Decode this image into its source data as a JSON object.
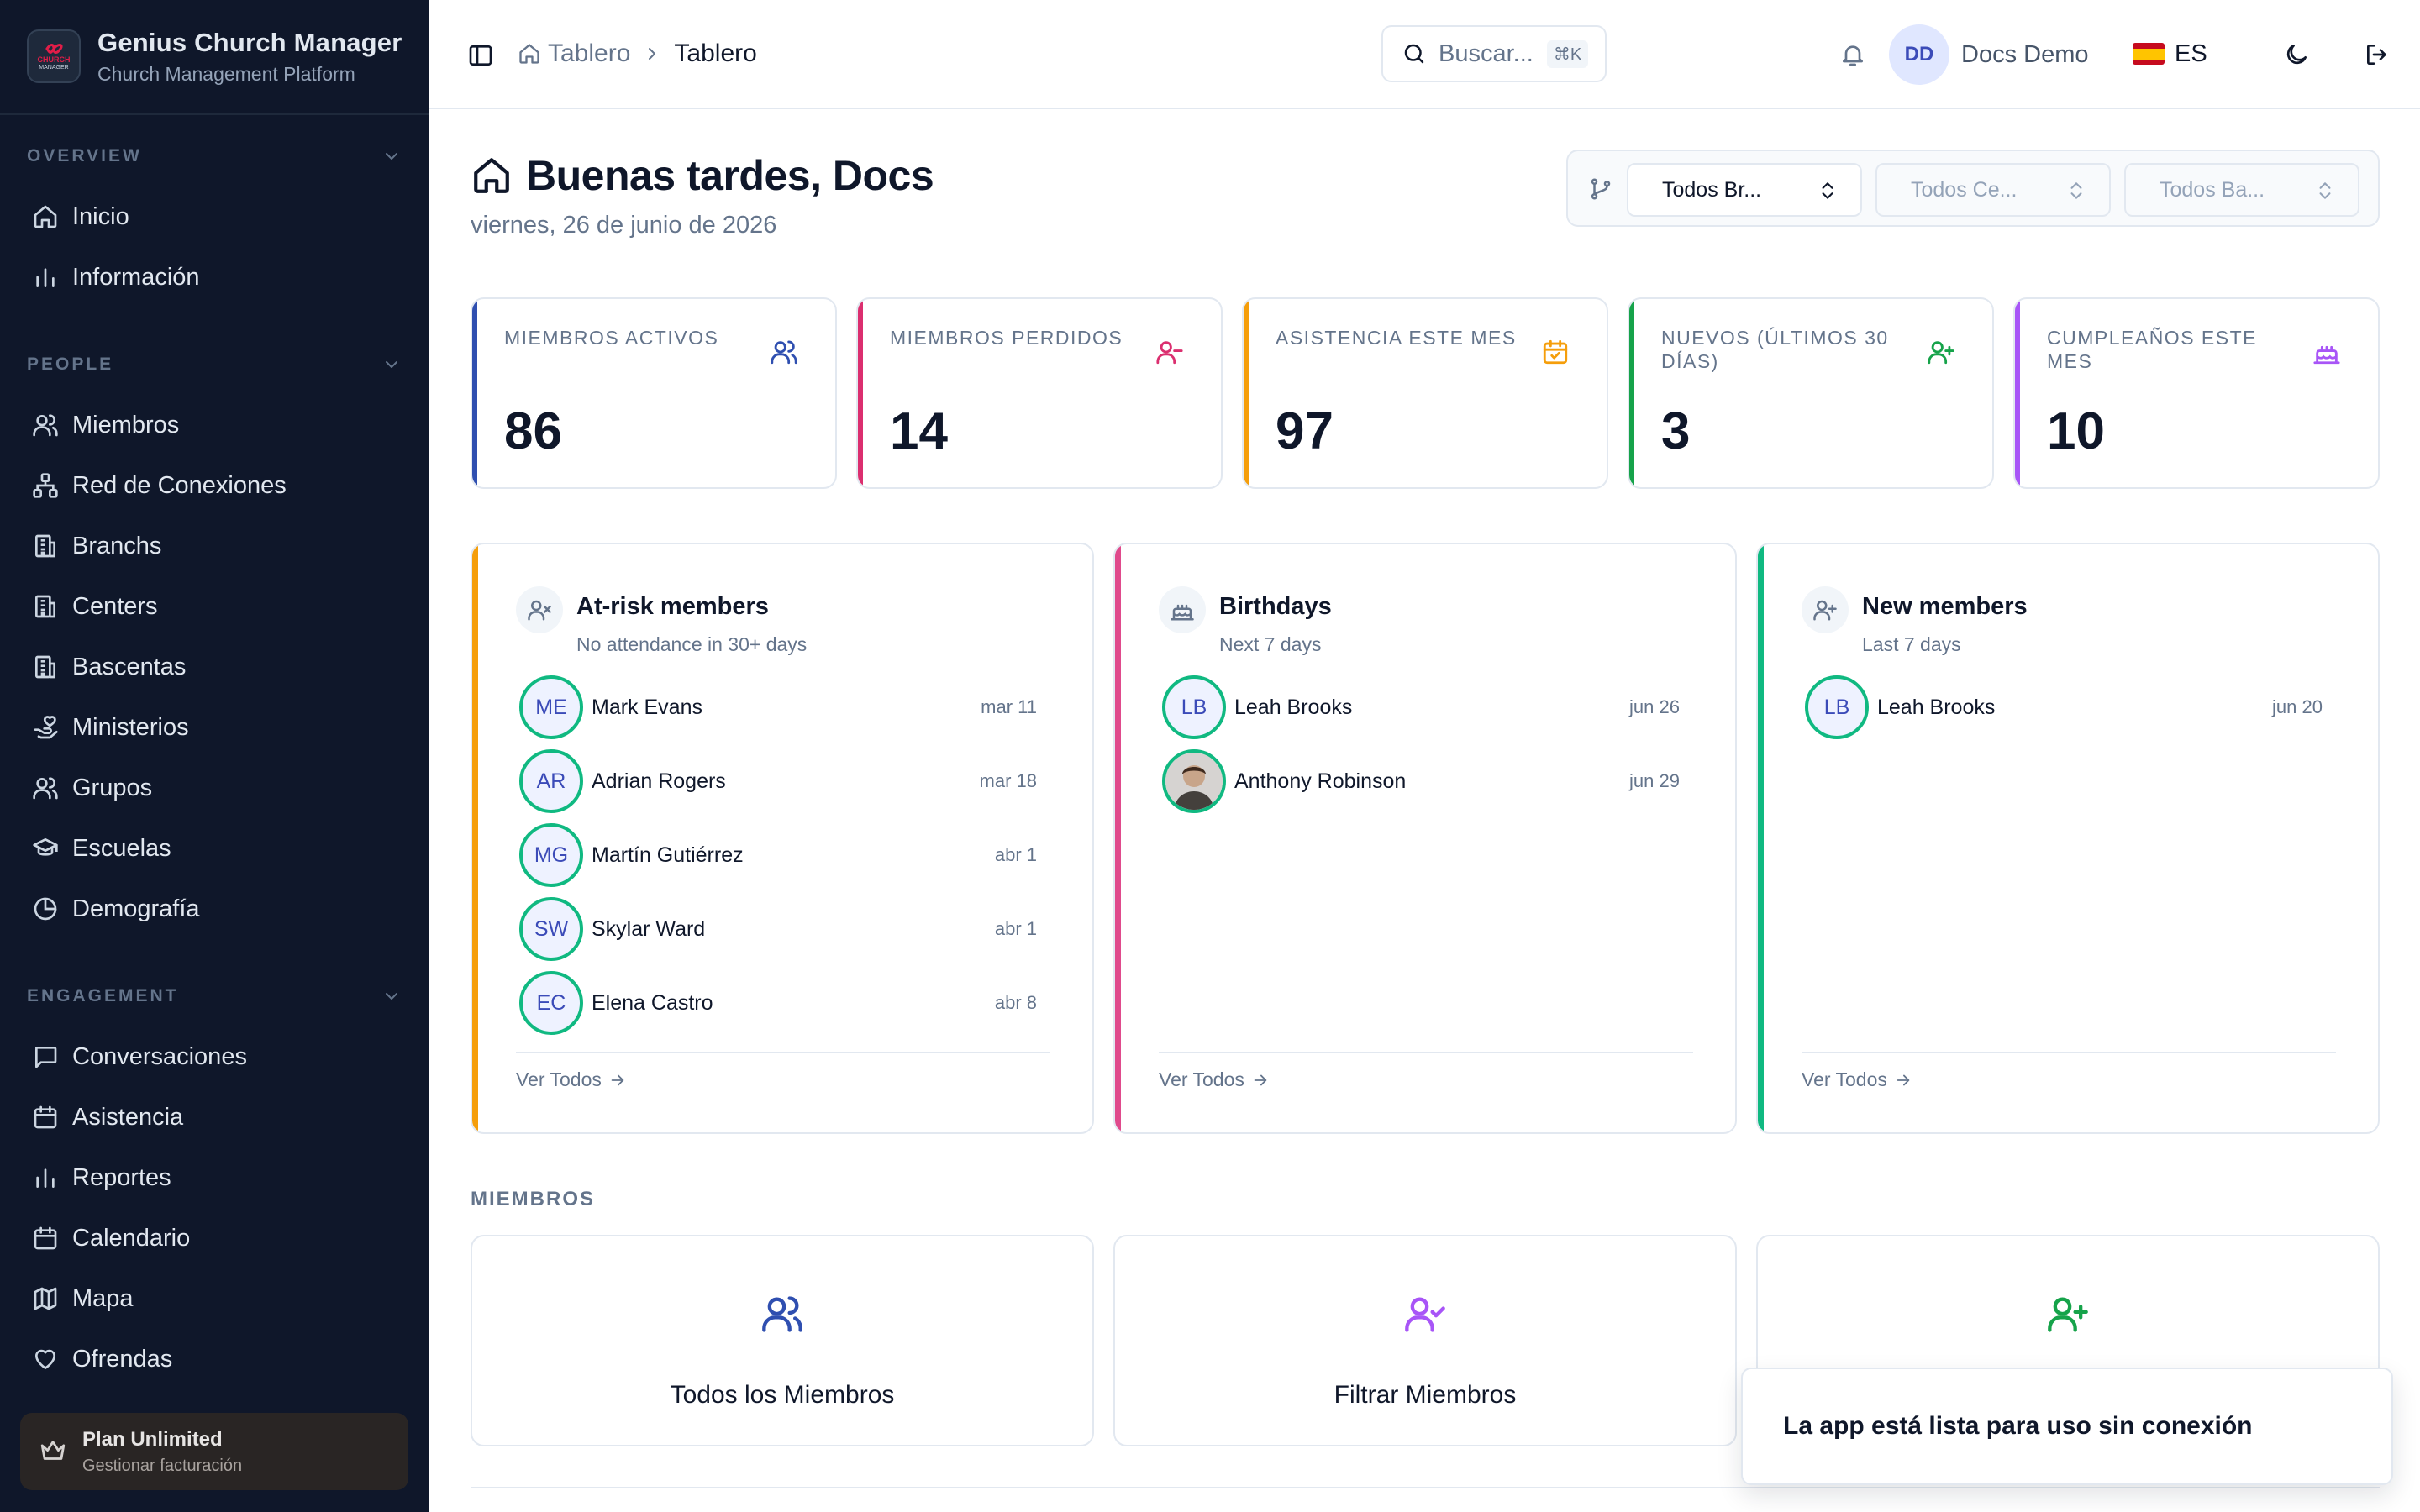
{
  "brand": {
    "title": "Genius Church Manager",
    "subtitle": "Church Management Platform",
    "logo_text_top": "CHURCH",
    "logo_text_bottom": "MANAGER"
  },
  "sidebar": {
    "sections": [
      {
        "label": "OVERVIEW",
        "items": [
          {
            "label": "Inicio",
            "icon": "home-icon"
          },
          {
            "label": "Información",
            "icon": "bar-chart-icon"
          }
        ]
      },
      {
        "label": "PEOPLE",
        "items": [
          {
            "label": "Miembros",
            "icon": "users-icon"
          },
          {
            "label": "Red de Conexiones",
            "icon": "network-icon"
          },
          {
            "label": "Branchs",
            "icon": "building-icon"
          },
          {
            "label": "Centers",
            "icon": "building-icon"
          },
          {
            "label": "Bascentas",
            "icon": "building-icon"
          },
          {
            "label": "Ministerios",
            "icon": "hand-heart-icon"
          },
          {
            "label": "Grupos",
            "icon": "users-icon"
          },
          {
            "label": "Escuelas",
            "icon": "graduation-cap-icon"
          },
          {
            "label": "Demografía",
            "icon": "pie-chart-icon"
          }
        ]
      },
      {
        "label": "ENGAGEMENT",
        "items": [
          {
            "label": "Conversaciones",
            "icon": "message-icon"
          },
          {
            "label": "Asistencia",
            "icon": "calendar-icon"
          },
          {
            "label": "Reportes",
            "icon": "bar-chart-icon"
          },
          {
            "label": "Calendario",
            "icon": "calendar-icon"
          },
          {
            "label": "Mapa",
            "icon": "map-icon"
          },
          {
            "label": "Ofrendas",
            "icon": "heart-icon"
          }
        ]
      }
    ],
    "plan": {
      "title": "Plan Unlimited",
      "subtitle": "Gestionar facturación"
    }
  },
  "header": {
    "breadcrumb": {
      "home": "Tablero",
      "current": "Tablero"
    },
    "search": {
      "placeholder": "Buscar...",
      "shortcut": "⌘K"
    },
    "user": {
      "initials": "DD",
      "name": "Docs Demo"
    },
    "language": {
      "code": "ES",
      "flag": "spain-flag-icon"
    }
  },
  "main": {
    "greeting": "Buenas tardes, Docs",
    "date": "viernes, 26 de junio de 2026",
    "filters": [
      "Todos Br...",
      "Todos Ce...",
      "Todos Ba..."
    ],
    "stats": [
      {
        "label": "Miembros activos",
        "value": "86",
        "color": "#2f4fb0",
        "icon": "users-icon"
      },
      {
        "label": "Miembros perdidos",
        "value": "14",
        "color": "#db2f6f",
        "icon": "user-minus-icon"
      },
      {
        "label": "Asistencia este mes",
        "value": "97",
        "color": "#f59e0b",
        "icon": "calendar-check-icon"
      },
      {
        "label": "Nuevos (últimos 30 días)",
        "value": "3",
        "color": "#16a34a",
        "icon": "user-plus-icon"
      },
      {
        "label": "Cumpleaños este mes",
        "value": "10",
        "color": "#a855f7",
        "icon": "cake-icon"
      }
    ],
    "lists": [
      {
        "title": "At-risk members",
        "subtitle": "No attendance in 30+ days",
        "color": "#f59e0b",
        "icon": "user-x-icon",
        "link": "Ver Todos",
        "rows": [
          {
            "initials": "ME",
            "name": "Mark Evans",
            "date": "mar 11"
          },
          {
            "initials": "AR",
            "name": "Adrian Rogers",
            "date": "mar 18"
          },
          {
            "initials": "MG",
            "name": "Martín Gutiérrez",
            "date": "abr 1"
          },
          {
            "initials": "SW",
            "name": "Skylar Ward",
            "date": "abr 1"
          },
          {
            "initials": "EC",
            "name": "Elena Castro",
            "date": "abr 8"
          }
        ]
      },
      {
        "title": "Birthdays",
        "subtitle": "Next 7 days",
        "color": "#e04a8c",
        "icon": "cake-icon",
        "link": "Ver Todos",
        "rows": [
          {
            "initials": "LB",
            "name": "Leah Brooks",
            "date": "jun 26"
          },
          {
            "initials": "",
            "name": "Anthony Robinson",
            "date": "jun 29",
            "photo": true
          }
        ]
      },
      {
        "title": "New members",
        "subtitle": "Last 7 days",
        "color": "#10b981",
        "icon": "user-plus-icon",
        "link": "Ver Todos",
        "rows": [
          {
            "initials": "LB",
            "name": "Leah Brooks",
            "date": "jun 20"
          }
        ]
      }
    ],
    "members_section": {
      "label": "MIEMBROS",
      "cards": [
        {
          "label": "Todos los Miembros",
          "icon": "users-icon",
          "color": "#2f4fb0"
        },
        {
          "label": "Filtrar Miembros",
          "icon": "user-check-icon",
          "color": "#a855f7"
        },
        {
          "label": "",
          "icon": "user-plus-icon",
          "color": "#16a34a"
        }
      ]
    }
  },
  "toast": {
    "message": "La app está lista para uso sin conexión"
  }
}
